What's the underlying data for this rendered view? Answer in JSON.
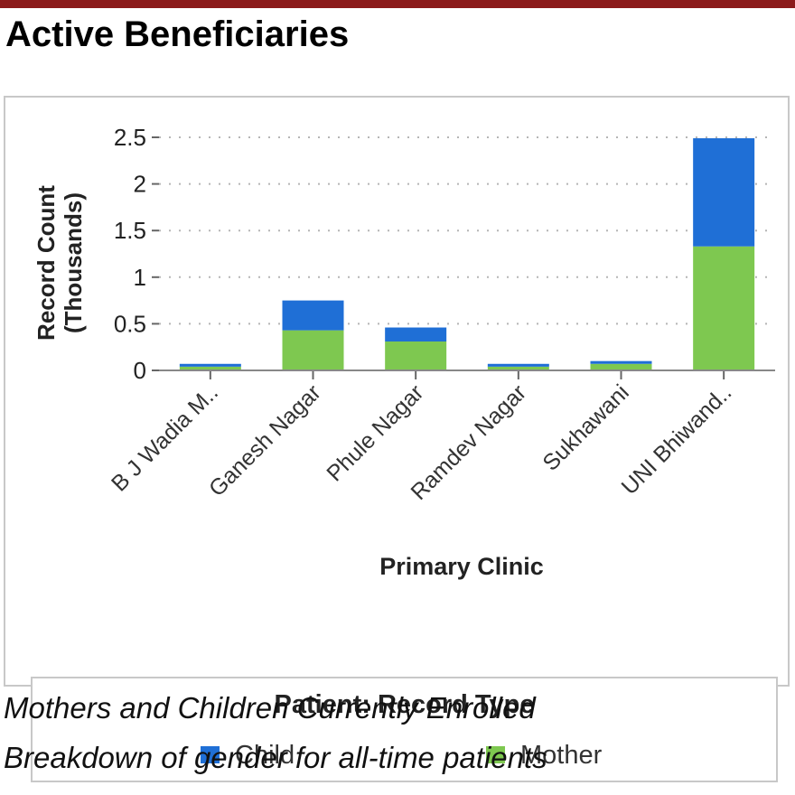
{
  "page": {
    "title": "Active Beneficiaries"
  },
  "captions": [
    "Mothers and Children Currently Enrolled",
    "Breakdown of gender for all-time patients"
  ],
  "legend": {
    "title": "Patient: Record Type",
    "items": [
      {
        "label": "Child",
        "color": "#1f6fd6"
      },
      {
        "label": "Mother",
        "color": "#7ec850"
      }
    ]
  },
  "chart_data": {
    "type": "bar",
    "stacked": true,
    "categories": [
      "B J Wadia M..",
      "Ganesh Nagar",
      "Phule Nagar",
      "Ramdev Nagar",
      "Sukhawani",
      "UNI Bhiwand.."
    ],
    "series": [
      {
        "name": "Mother",
        "color": "#7ec850",
        "values": [
          0.04,
          0.43,
          0.31,
          0.04,
          0.07,
          1.33
        ]
      },
      {
        "name": "Child",
        "color": "#1f6fd6",
        "values": [
          0.03,
          0.32,
          0.15,
          0.03,
          0.03,
          1.16
        ]
      }
    ],
    "xlabel": "Primary Clinic",
    "ylabel": "Record Count",
    "ylabel2": "(Thousands)",
    "ylim": [
      0,
      2.5
    ],
    "yticks": [
      0,
      0.5,
      1,
      1.5,
      2,
      2.5
    ],
    "ytick_labels": [
      "0",
      "0.5",
      "1",
      "1.5",
      "2",
      "2.5"
    ],
    "grid": true
  }
}
